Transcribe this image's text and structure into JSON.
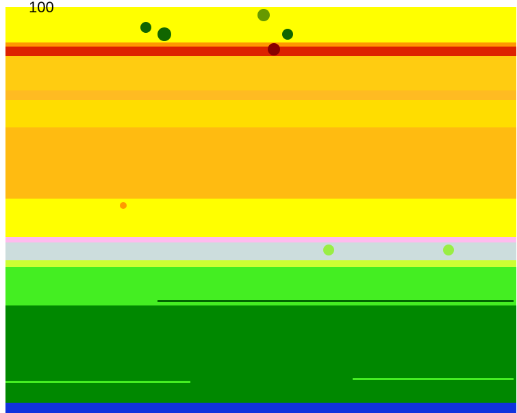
{
  "label": "100"
}
